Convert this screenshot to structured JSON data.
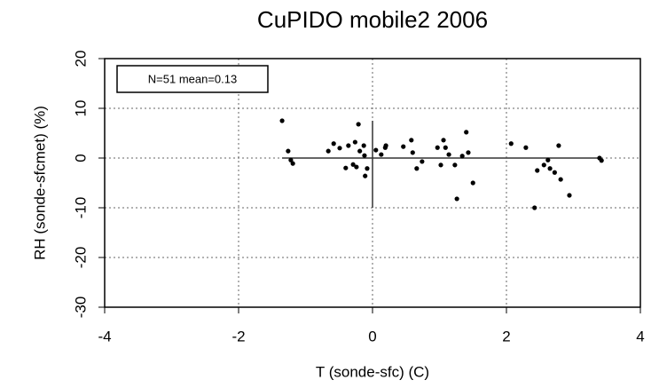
{
  "chart_data": {
    "type": "scatter",
    "title": "CuPIDO mobile2 2006",
    "x_label": "T (sonde-sfc) (C)",
    "y_label": "RH (sonde-sfcmet) (%)",
    "annotation": "N=51 mean=0.13",
    "xlim": [
      -4,
      4
    ],
    "ylim": [
      -30,
      20
    ],
    "xticks": [
      -4,
      -2,
      0,
      2,
      4
    ],
    "yticks": [
      -30,
      -20,
      -10,
      0,
      10,
      20
    ],
    "grid": true,
    "color": "#000000",
    "series": [
      {
        "x": [
          -1.35,
          -1.26,
          -1.22,
          -1.19,
          -0.66,
          -0.58,
          -0.49,
          -0.4,
          -0.36,
          -0.29,
          -0.26,
          -0.24,
          -0.21,
          -0.19,
          -0.13,
          -0.11,
          -0.08,
          -0.12,
          0.05,
          0.13,
          0.19,
          0.2,
          0.46,
          0.58,
          0.6,
          0.66,
          0.74,
          0.97,
          1.02,
          1.06,
          1.09,
          1.14,
          1.23,
          1.26,
          1.34,
          1.4,
          1.43,
          1.5,
          2.07,
          2.29,
          2.42,
          2.46,
          2.56,
          2.62,
          2.65,
          2.72,
          2.78,
          2.81,
          2.94,
          3.39,
          3.42
        ],
        "values": [
          7.5,
          1.4,
          -0.4,
          -1.1,
          1.4,
          2.9,
          2.0,
          -2.0,
          2.5,
          -1.3,
          3.2,
          -1.8,
          6.8,
          1.4,
          2.5,
          -3.6,
          -2.1,
          0.5,
          1.6,
          0.7,
          2.1,
          2.5,
          2.3,
          3.6,
          1.1,
          -2.1,
          -0.7,
          2.1,
          -1.4,
          3.6,
          2.1,
          0.7,
          -1.4,
          -8.2,
          0.4,
          5.2,
          1.1,
          -5.0,
          2.9,
          2.1,
          -10.0,
          -2.5,
          -1.4,
          -0.4,
          -2.1,
          -2.9,
          2.5,
          -4.3,
          -7.5,
          0.0,
          -0.5
        ]
      }
    ]
  }
}
